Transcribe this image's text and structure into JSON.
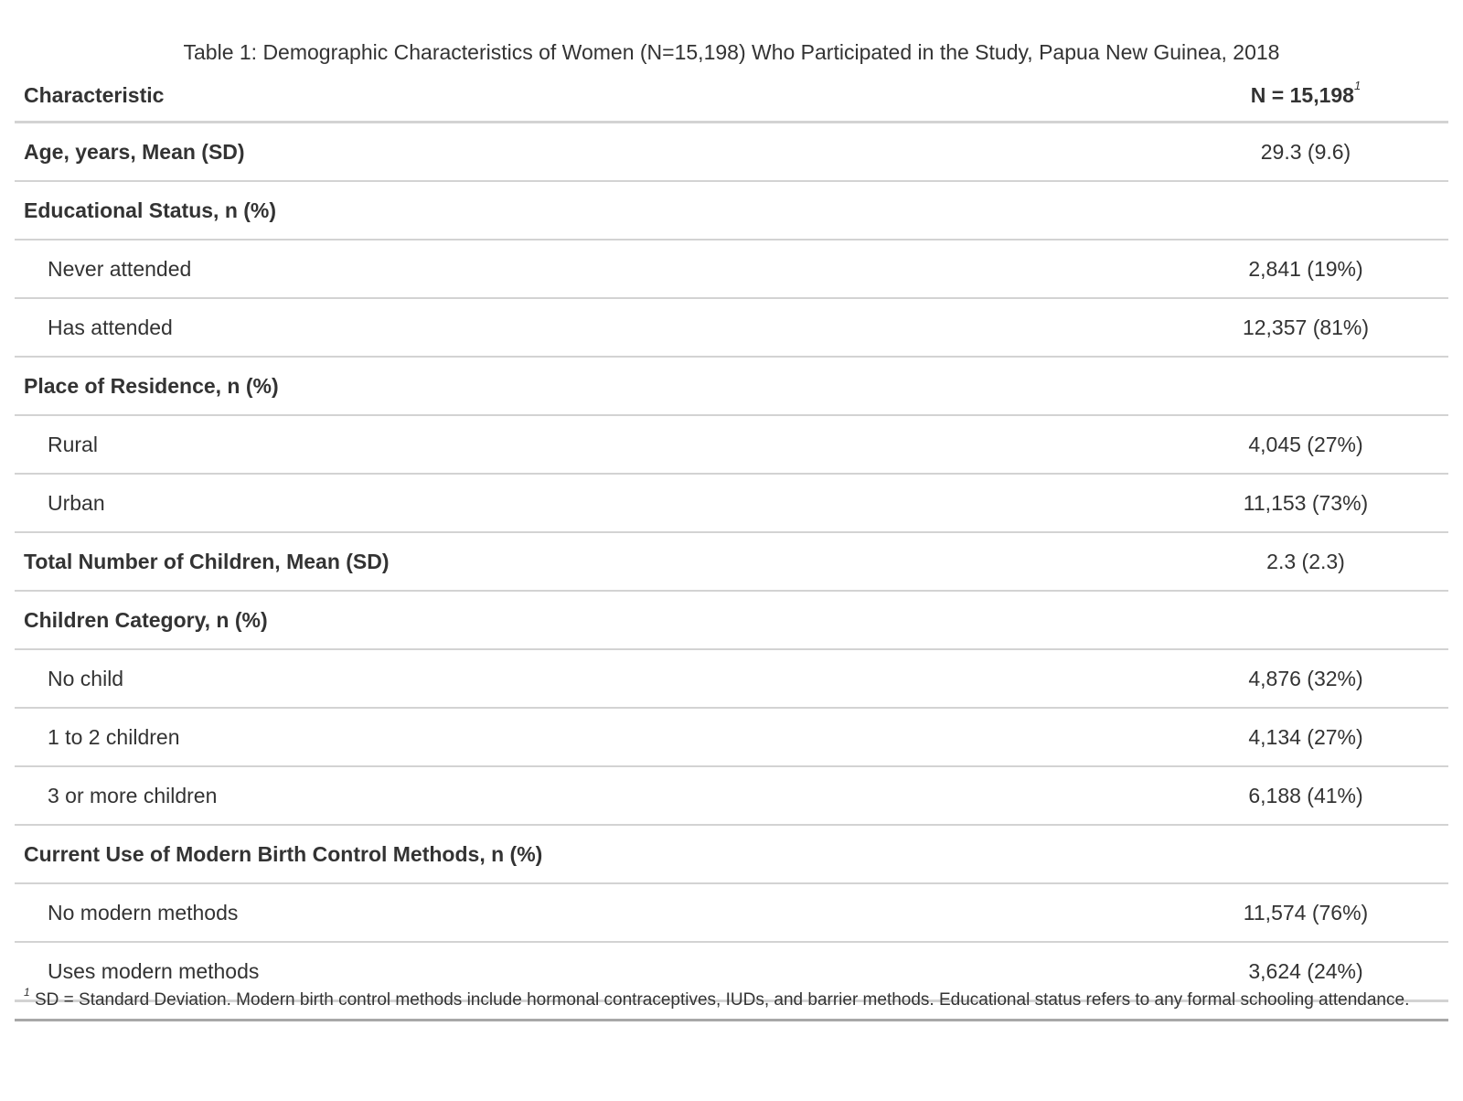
{
  "caption": "Table 1: Demographic Characteristics of Women (N=15,198) Who Participated in the Study, Papua New Guinea, 2018",
  "header": {
    "label": "Characteristic",
    "value": "N = 15,198",
    "value_footnote_mark": "1"
  },
  "rows": [
    {
      "label": "Age, years, Mean (SD)",
      "value": "29.3 (9.6)",
      "kind": "group"
    },
    {
      "label": "Educational Status, n (%)",
      "value": "",
      "kind": "group"
    },
    {
      "label": "Never attended",
      "value": "2,841 (19%)",
      "kind": "sub"
    },
    {
      "label": "Has attended",
      "value": "12,357 (81%)",
      "kind": "sub"
    },
    {
      "label": "Place of Residence, n (%)",
      "value": "",
      "kind": "group"
    },
    {
      "label": "Rural",
      "value": "4,045 (27%)",
      "kind": "sub"
    },
    {
      "label": "Urban",
      "value": "11,153 (73%)",
      "kind": "sub"
    },
    {
      "label": "Total Number of Children, Mean (SD)",
      "value": "2.3 (2.3)",
      "kind": "group"
    },
    {
      "label": "Children Category, n (%)",
      "value": "",
      "kind": "group"
    },
    {
      "label": "No child",
      "value": "4,876 (32%)",
      "kind": "sub"
    },
    {
      "label": "1 to 2 children",
      "value": "4,134 (27%)",
      "kind": "sub"
    },
    {
      "label": "3 or more children",
      "value": "6,188 (41%)",
      "kind": "sub"
    },
    {
      "label": "Current Use of Modern Birth Control Methods, n (%)",
      "value": "",
      "kind": "group"
    },
    {
      "label": "No modern methods",
      "value": "11,574 (76%)",
      "kind": "sub"
    },
    {
      "label": "Uses modern methods",
      "value": "3,624 (24%)",
      "kind": "sub"
    }
  ],
  "footnote": {
    "mark": "1",
    "text": "SD = Standard Deviation. Modern birth control methods include hormonal contraceptives, IUDs, and barrier methods. Educational status refers to any formal schooling attendance."
  }
}
